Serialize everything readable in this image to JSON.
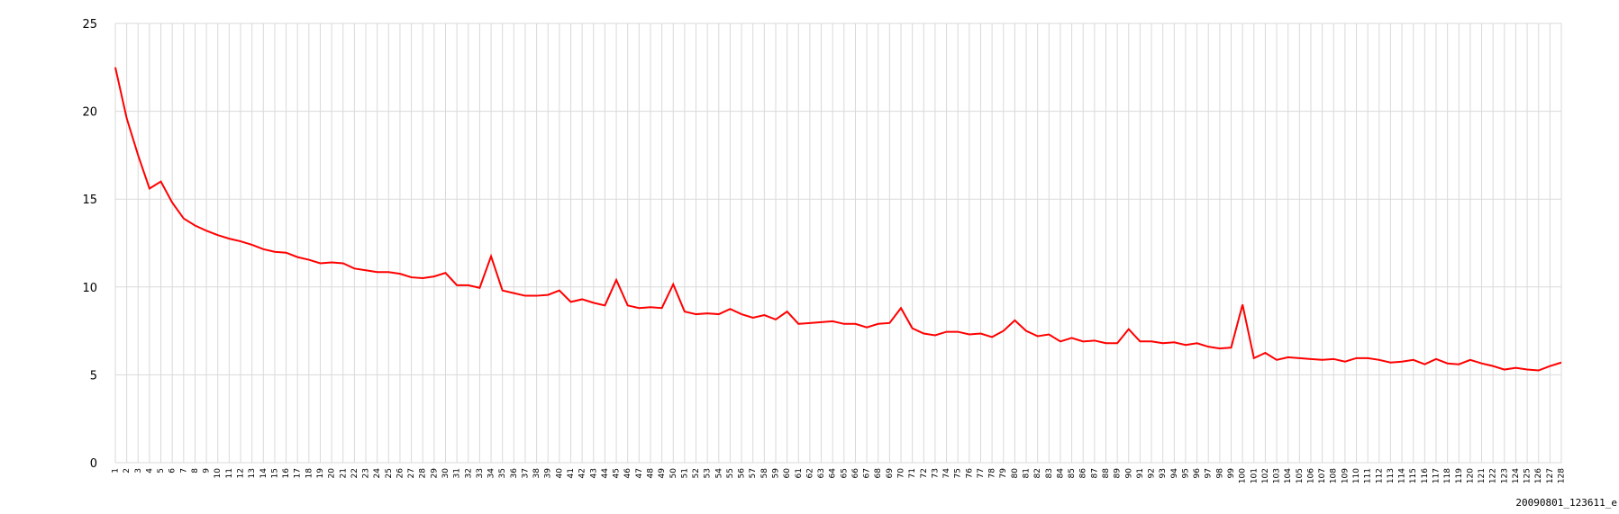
{
  "chart_data": {
    "type": "line",
    "annotation": "20090801_123611_e",
    "categories": [
      "1",
      "2",
      "3",
      "4",
      "5",
      "6",
      "7",
      "8",
      "9",
      "10",
      "11",
      "12",
      "13",
      "14",
      "15",
      "16",
      "17",
      "18",
      "19",
      "20",
      "21",
      "22",
      "23",
      "24",
      "25",
      "26",
      "27",
      "28",
      "29",
      "30",
      "31",
      "32",
      "33",
      "34",
      "35",
      "36",
      "37",
      "38",
      "39",
      "40",
      "41",
      "42",
      "43",
      "44",
      "45",
      "46",
      "47",
      "48",
      "49",
      "50",
      "51",
      "52",
      "53",
      "54",
      "55",
      "56",
      "57",
      "58",
      "59",
      "60",
      "61",
      "62",
      "63",
      "64",
      "65",
      "66",
      "67",
      "68",
      "69",
      "70",
      "71",
      "72",
      "73",
      "74",
      "75",
      "76",
      "77",
      "78",
      "79",
      "80",
      "81",
      "82",
      "83",
      "84",
      "85",
      "86",
      "87",
      "88",
      "89",
      "90",
      "91",
      "92",
      "93",
      "94",
      "95",
      "96",
      "97",
      "98",
      "99",
      "100",
      "101",
      "102",
      "103",
      "104",
      "105",
      "106",
      "107",
      "108",
      "109",
      "110",
      "111",
      "112",
      "113",
      "114",
      "115",
      "116",
      "117",
      "118",
      "119",
      "120",
      "121",
      "122",
      "123",
      "124",
      "125",
      "126",
      "127",
      "128"
    ],
    "values": [
      22.5,
      19.6,
      17.5,
      15.6,
      16.0,
      14.8,
      13.9,
      13.5,
      13.2,
      12.95,
      12.75,
      12.6,
      12.4,
      12.15,
      12.0,
      11.95,
      11.7,
      11.55,
      11.35,
      11.4,
      11.35,
      11.05,
      10.95,
      10.85,
      10.85,
      10.75,
      10.55,
      10.5,
      10.6,
      10.8,
      10.1,
      10.1,
      9.95,
      11.75,
      9.8,
      9.65,
      9.5,
      9.5,
      9.55,
      9.8,
      9.15,
      9.3,
      9.1,
      8.95,
      10.4,
      8.95,
      8.8,
      8.85,
      8.8,
      10.15,
      8.6,
      8.45,
      8.5,
      8.45,
      8.75,
      8.45,
      8.25,
      8.4,
      8.15,
      8.6,
      7.9,
      7.95,
      8.0,
      8.05,
      7.9,
      7.9,
      7.7,
      7.9,
      7.95,
      8.8,
      7.65,
      7.35,
      7.25,
      7.45,
      7.45,
      7.3,
      7.35,
      7.15,
      7.5,
      8.1,
      7.5,
      7.2,
      7.3,
      6.9,
      7.1,
      6.9,
      6.95,
      6.8,
      6.8,
      7.6,
      6.9,
      6.9,
      6.8,
      6.85,
      6.7,
      6.8,
      6.6,
      6.5,
      6.55,
      9.0,
      5.95,
      6.25,
      5.85,
      6.0,
      5.95,
      5.9,
      5.85,
      5.9,
      5.75,
      5.95,
      5.95,
      5.85,
      5.7,
      5.75,
      5.85,
      5.6,
      5.9,
      5.65,
      5.6,
      5.85,
      5.65,
      5.5,
      5.3,
      5.4,
      5.3,
      5.25,
      5.5,
      5.7
    ],
    "color": "#ff0000",
    "ylim": [
      0,
      25
    ],
    "yticks": [
      0,
      5,
      10,
      15,
      20,
      25
    ],
    "grid": true
  }
}
